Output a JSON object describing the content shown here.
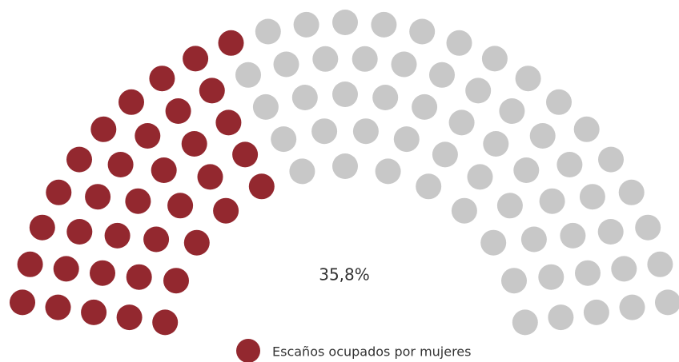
{
  "chart_data": {
    "type": "parliament",
    "value": 35.8,
    "value_label": "35,8%",
    "seats": [
      {
        "name": "Escaños ocupados por mujeres",
        "color": "#93282f",
        "value": 36
      },
      {
        "color": "#c8c8c8",
        "value": 59
      }
    ]
  }
}
